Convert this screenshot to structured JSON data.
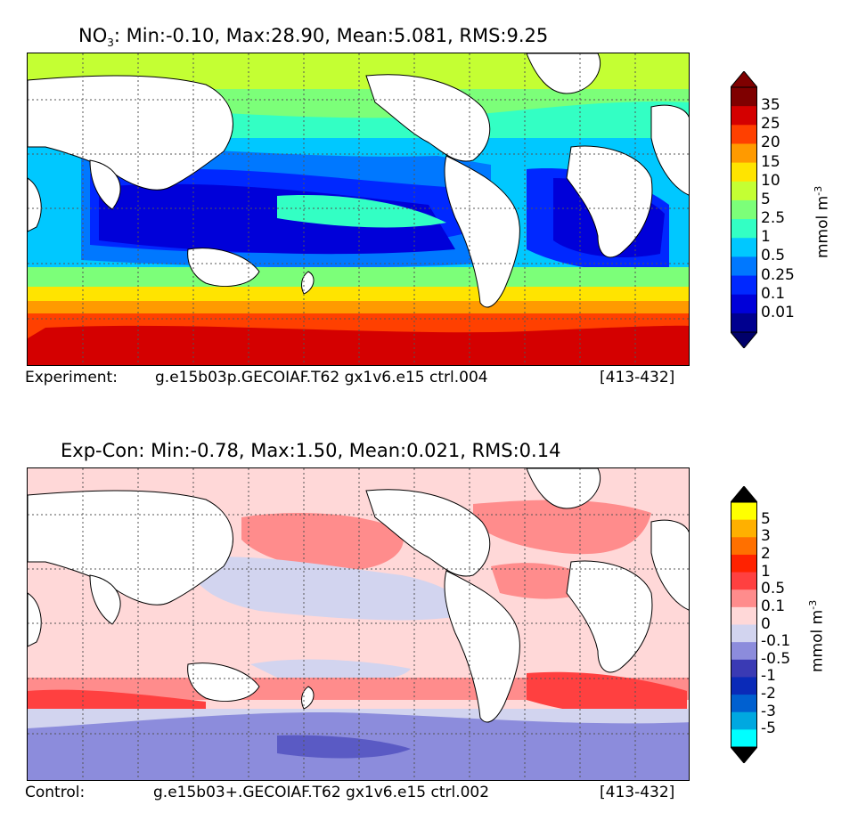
{
  "panel_top": {
    "title_prefix": "NO",
    "title_sub": "3",
    "title_rest": ": Min:-0.10, Max:28.90, Mean:5.081, RMS:9.25",
    "caption_left": "Experiment:",
    "caption_mid": "g.e15b03p.GECOIAF.T62 gx1v6.e15 ctrl.004",
    "caption_right": "[413-432]",
    "colorbar": {
      "unit_base": "mmol m",
      "unit_exp": "-3",
      "levels": [
        "35",
        "25",
        "20",
        "15",
        "10",
        "5",
        "2.5",
        "1",
        "0.5",
        "0.25",
        "0.1",
        "0.01"
      ],
      "colors": [
        "#7f0000",
        "#d40000",
        "#ff4000",
        "#ff9a00",
        "#ffe400",
        "#c4ff33",
        "#7cff79",
        "#33ffc4",
        "#00c8ff",
        "#0078ff",
        "#0028ff",
        "#0000d9",
        "#00008f"
      ],
      "over_color": "#7f0000",
      "under_color": "#00006a"
    }
  },
  "panel_bottom": {
    "title": "Exp-Con: Min:-0.78, Max:1.50, Mean:0.021, RMS:0.14",
    "caption_left": "Control:",
    "caption_mid": "g.e15b03+.GECOIAF.T62 gx1v6.e15 ctrl.002",
    "caption_right": "[413-432]",
    "colorbar": {
      "unit_base": "mmol m",
      "unit_exp": "-3",
      "levels": [
        "5",
        "3",
        "2",
        "1",
        "0.5",
        "0.1",
        "0",
        "-0.1",
        "-0.5",
        "-1",
        "-2",
        "-3",
        "-5"
      ],
      "colors": [
        "#ffff00",
        "#ffb000",
        "#ff7000",
        "#ff2200",
        "#ff4040",
        "#ff8c8c",
        "#ffd8d8",
        "#d2d4ef",
        "#8c8cdc",
        "#3a3ab4",
        "#0a2ab8",
        "#0060d0",
        "#00a8e0",
        "#00ffff"
      ],
      "over_color": "#000000",
      "under_color": "#000000"
    }
  }
}
